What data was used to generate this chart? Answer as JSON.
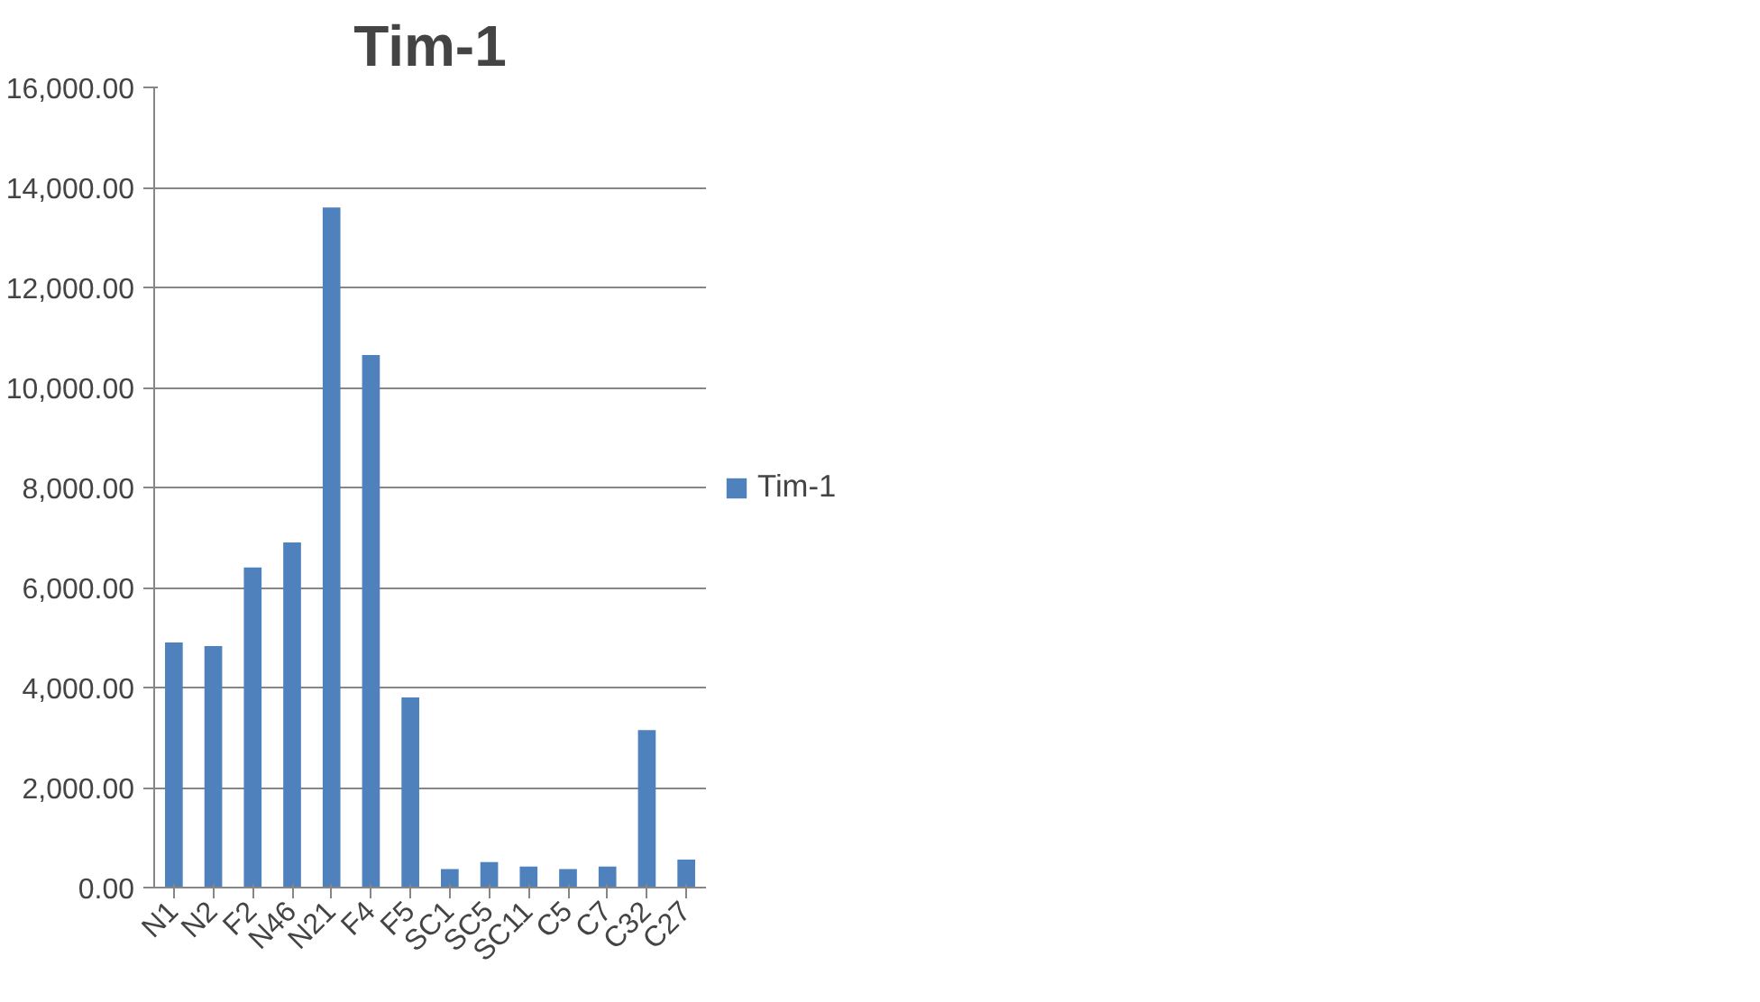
{
  "chart_data": {
    "type": "bar",
    "title": "Tim-1",
    "categories": [
      "N1",
      "N2",
      "F2",
      "N46",
      "N21",
      "F4",
      "F5",
      "SC1",
      "SC5",
      "SC11",
      "C5",
      "C7",
      "C32",
      "C27"
    ],
    "series": [
      {
        "name": "Tim-1",
        "color": "#4f81bd",
        "values": [
          4900,
          4830,
          6400,
          6900,
          13600,
          10650,
          3800,
          370,
          510,
          420,
          370,
          420,
          3150,
          560
        ]
      }
    ],
    "ylim": [
      0,
      16000
    ],
    "yticks": [
      {
        "value": 0,
        "label": "0.00"
      },
      {
        "value": 2000,
        "label": "2,000.00"
      },
      {
        "value": 4000,
        "label": "4,000.00"
      },
      {
        "value": 6000,
        "label": "6,000.00"
      },
      {
        "value": 8000,
        "label": "8,000.00"
      },
      {
        "value": 10000,
        "label": "10,000.00"
      },
      {
        "value": 12000,
        "label": "12,000.00"
      },
      {
        "value": 14000,
        "label": "14,000.00"
      },
      {
        "value": 16000,
        "label": "16,000.00"
      }
    ],
    "grid": "y",
    "legend": "right"
  }
}
